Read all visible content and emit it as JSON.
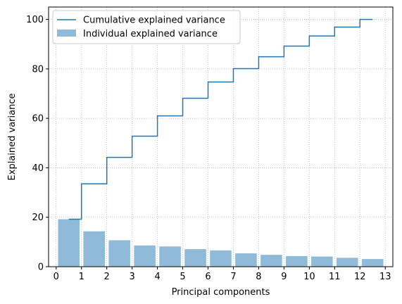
{
  "chart_data": {
    "type": "bar",
    "title": "",
    "xlabel": "Principal components",
    "ylabel": "Explained variance",
    "xlim": [
      -0.3,
      13.3
    ],
    "ylim": [
      0,
      105
    ],
    "xticks": [
      0,
      1,
      2,
      3,
      4,
      5,
      6,
      7,
      8,
      9,
      10,
      11,
      12,
      13
    ],
    "yticks": [
      0,
      20,
      40,
      60,
      80,
      100
    ],
    "grid": true,
    "legend_position": "top-left",
    "x": [
      0.5,
      1.5,
      2.5,
      3.5,
      4.5,
      5.5,
      6.5,
      7.5,
      8.5,
      9.5,
      10.5,
      11.5,
      12.5
    ],
    "series": [
      {
        "name": "Cumulative explained variance",
        "type": "step",
        "color": "#1f77b4",
        "values": [
          19.2,
          33.5,
          44.2,
          52.8,
          61.0,
          68.1,
          74.7,
          80.1,
          84.9,
          89.2,
          93.3,
          96.9,
          100.0
        ]
      },
      {
        "name": "Individual explained variance",
        "type": "bar",
        "color": "#1f77b4",
        "opacity": 0.5,
        "values": [
          19.2,
          14.3,
          10.7,
          8.6,
          8.2,
          7.1,
          6.6,
          5.4,
          4.8,
          4.3,
          4.1,
          3.6,
          3.1
        ]
      }
    ]
  }
}
